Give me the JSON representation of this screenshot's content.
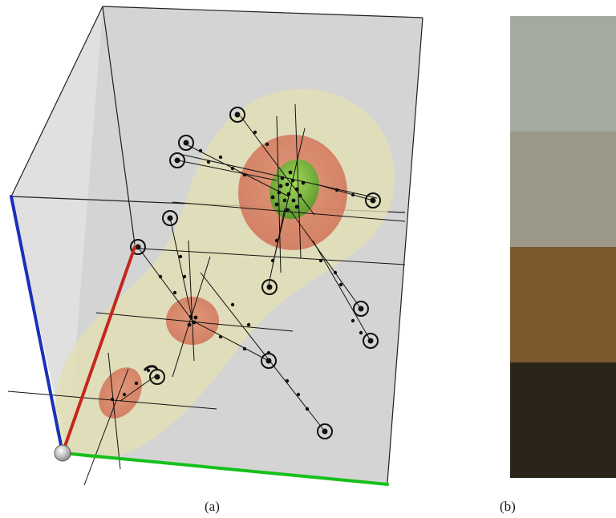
{
  "captions": {
    "a": "(a)",
    "b": "(b)"
  },
  "palette": [
    "#a5aa9f",
    "#9c9888",
    "#7b582e",
    "#2b2418"
  ],
  "colors": {
    "box_fill": "#cfcfcf",
    "box_edge": "#1f1f1f",
    "outer_surface": "#e3dfb4",
    "mid_surface": "#d97c63",
    "core_surface": "#6fae3a",
    "axis_x": "#c4271c",
    "axis_y": "#1a31b8",
    "axis_z": "#16c01a",
    "origin": "#d8d8d8"
  }
}
